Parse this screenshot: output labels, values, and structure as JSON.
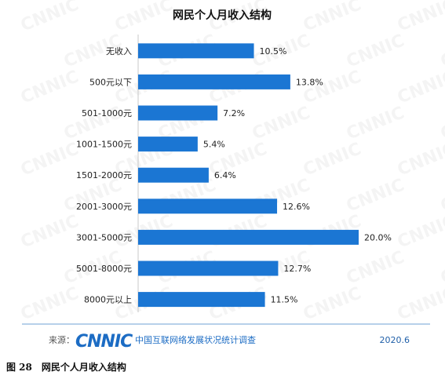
{
  "caption": "图 28　网民个人月收入结构",
  "footer": {
    "source_prefix": "来源：",
    "brand": "CNNIC",
    "org": "中国互联网络发展状况统计调查",
    "date": "2020.6"
  },
  "watermark": "CNNIC",
  "colors": {
    "bar": "#1b76d3",
    "divider": "#6fa0d6"
  },
  "chart_data": {
    "type": "bar",
    "orientation": "horizontal",
    "title": "网民个人月收入结构",
    "categories": [
      "无收入",
      "500元以下",
      "501-1000元",
      "1001-1500元",
      "1501-2000元",
      "2001-3000元",
      "3001-5000元",
      "5001-8000元",
      "8000元以上"
    ],
    "values": [
      10.5,
      13.8,
      7.2,
      5.4,
      6.4,
      12.6,
      20.0,
      12.7,
      11.5
    ],
    "value_labels": [
      "10.5%",
      "13.8%",
      "7.2%",
      "5.4%",
      "6.4%",
      "12.6%",
      "20.0%",
      "12.7%",
      "11.5%"
    ],
    "unit": "%",
    "xlim": [
      0,
      20
    ],
    "grid": false,
    "legend": "none"
  }
}
